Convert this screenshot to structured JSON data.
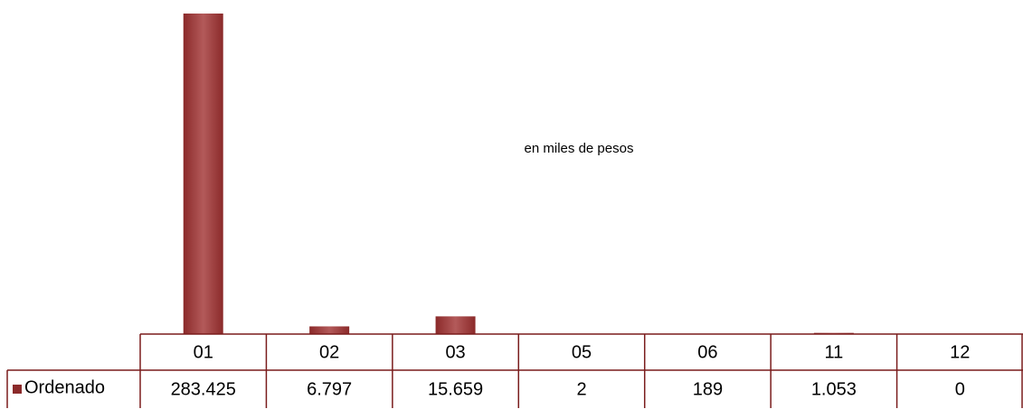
{
  "chart_data": {
    "type": "bar",
    "subtitle": "en miles de pesos",
    "categories": [
      "01",
      "02",
      "03",
      "05",
      "06",
      "11",
      "12"
    ],
    "series": [
      {
        "name": "Ordenado",
        "color": "#8b2a2a",
        "values": [
          283425,
          6797,
          15659,
          2,
          189,
          1053,
          0
        ],
        "value_labels": [
          "283.425",
          "6.797",
          "15.659",
          "2",
          "189",
          "1.053",
          "0"
        ]
      }
    ]
  }
}
